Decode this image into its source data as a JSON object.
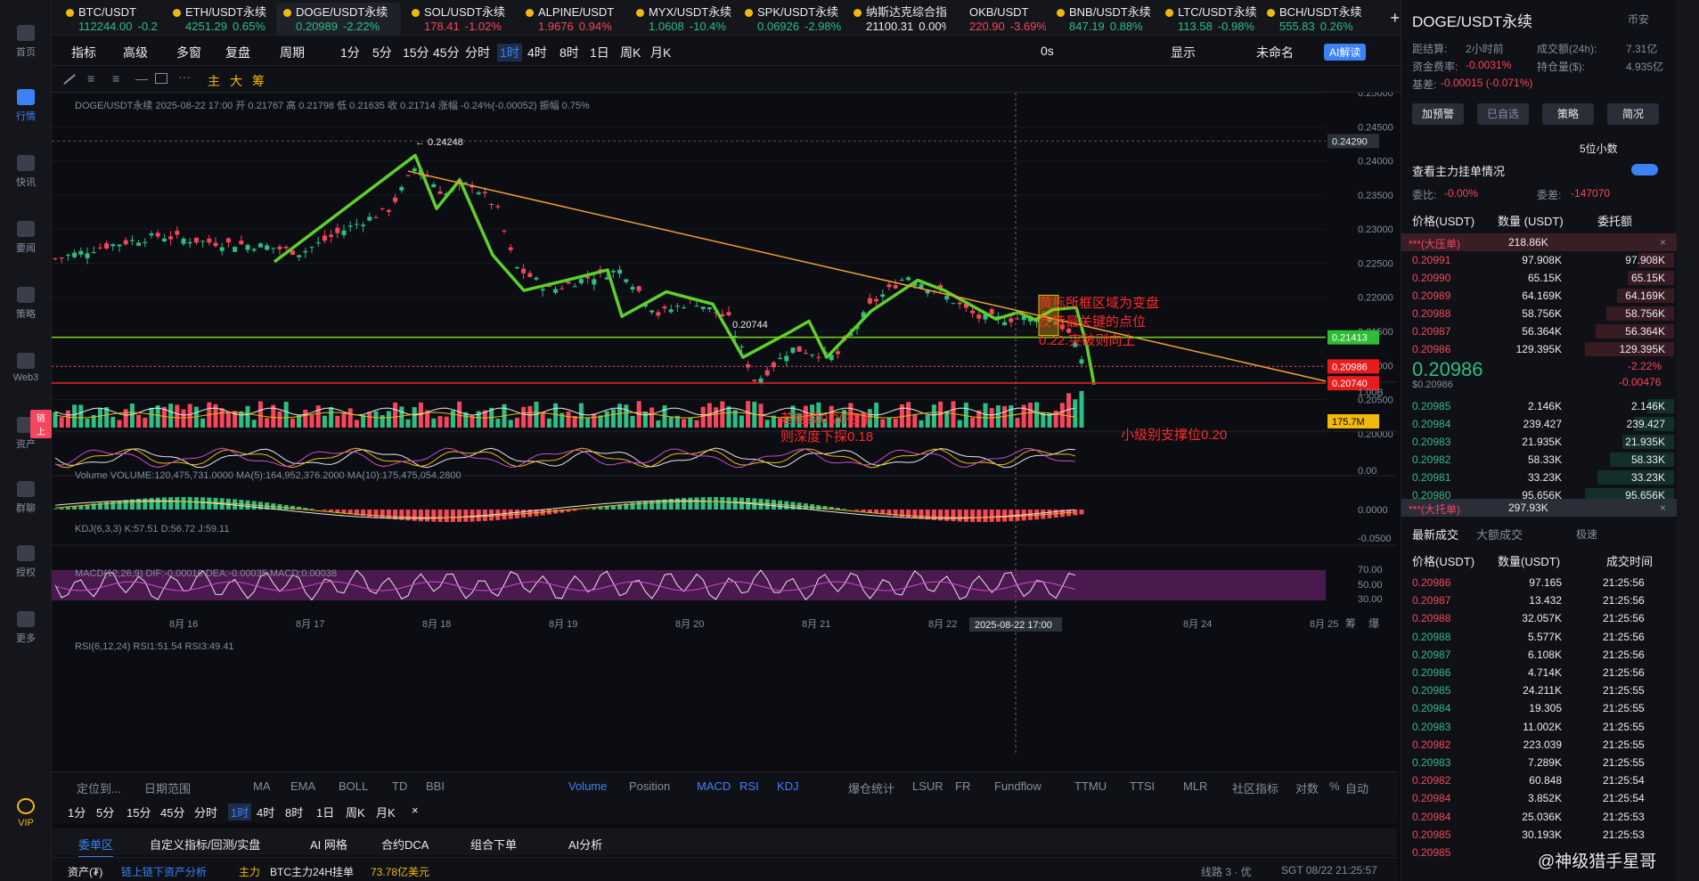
{
  "sidebar": [
    {
      "label": "首页"
    },
    {
      "label": "行情",
      "active": true
    },
    {
      "label": "快讯"
    },
    {
      "label": "要闻"
    },
    {
      "label": "策略"
    },
    {
      "label": "Web3"
    },
    {
      "label": "资产",
      "badge": "链上"
    },
    {
      "label": "群聊"
    },
    {
      "label": "授权"
    },
    {
      "label": "更多"
    },
    {
      "label": "VIP"
    }
  ],
  "tabs": [
    {
      "name": "BTC/USDT",
      "price": "112244.00",
      "chg": "-0.2",
      "dir": "up"
    },
    {
      "name": "ETH/USDT永续",
      "price": "4251.29",
      "chg": "0.65%",
      "dir": "up"
    },
    {
      "name": "DOGE/USDT永续",
      "price": "0.20989",
      "chg": "-2.22%",
      "dir": "up",
      "sel": true
    },
    {
      "name": "SOL/USDT永续",
      "price": "178.41",
      "chg": "-1.02%",
      "dir": "dn"
    },
    {
      "name": "ALPINE/USDT",
      "price": "1.9676",
      "chg": "0.94%",
      "dir": "dn"
    },
    {
      "name": "MYX/USDT永续",
      "price": "1.0608",
      "chg": "-10.4%",
      "dir": "up"
    },
    {
      "name": "SPK/USDT永续",
      "price": "0.06926",
      "chg": "-2.98%",
      "dir": "up"
    },
    {
      "name": "纳斯达克综合指数",
      "price": "21100.31",
      "chg": "0.00%",
      "dir": "wh"
    },
    {
      "name": "OKB/USDT",
      "price": "220.90",
      "chg": "-3.69%",
      "dir": "dn"
    },
    {
      "name": "BNB/USDT永续",
      "price": "847.19",
      "chg": "0.88%",
      "dir": "up"
    },
    {
      "name": "LTC/USDT永续",
      "price": "113.58",
      "chg": "-0.98%",
      "dir": "up"
    },
    {
      "name": "BCH/USDT永续",
      "price": "555.83",
      "chg": "0.26%",
      "dir": "up"
    }
  ],
  "add_tab": "+",
  "toolbar1": [
    "指标",
    "高级",
    "多窗",
    "复盘",
    "周期",
    "1分",
    "5分",
    "15分",
    "45分",
    "分时",
    "1时",
    "4时",
    "8时",
    "1日",
    "周K",
    "月K"
  ],
  "toolbar1_right": [
    "0s",
    "显示",
    "未命名",
    "AI解读"
  ],
  "toolbar2": [
    "主",
    "大",
    "筹"
  ],
  "chart": {
    "header": "DOGE/USDT永续  2025-08-22 17:00  开 0.21767  高 0.21798  低 0.21635  收 0.21714  涨幅 -0.24%(-0.00052)  振幅 0.75%",
    "price_axis": [
      "0.25000",
      "0.24500",
      "0.24000",
      "0.23500",
      "0.23000",
      "0.22500",
      "0.22000",
      "0.21500",
      "0.21000",
      "0.20500",
      "0.20000"
    ],
    "tag_top": "0.24290",
    "tag_green": "0.21413",
    "tag_cur": "0.20986",
    "tag_red": "0.20740",
    "high_lbl": "← 0.24248",
    "low_lbl": "0.20744",
    "anno1": "黄标所框区域为变盘反转最关键的点位0.22.突破则向上",
    "anno2": "若继续0.20往下.\n则深度下探0.18",
    "anno3": "小级别支撑位0.20",
    "volume_hdr": "Volume  VOLUME:120,475,731.0000  MA(5):164,952,376.2000  MA(10):175,475,054.2800",
    "vol_axis": "1.00B",
    "vol_tag": "175.7M",
    "kdj_hdr": "KDJ(6,3,3)  K:57.51  D:56.72  J:59.11",
    "kdj_axis": "0.00",
    "macd_hdr": "MACD(12,26,9)  DIF:-0.00016  DEA:-0.00035  MACD:0.00038",
    "macd_axis": [
      "0.0000",
      "-0.0500"
    ],
    "rsi_hdr": "RSI(6,12,24)  RSI1:51.54  RSI3:49.41",
    "rsi_axis": [
      "70.00",
      "50.00",
      "30.00"
    ],
    "dates": [
      "8月 16",
      "8月 17",
      "8月 18",
      "8月 19",
      "8月 20",
      "8月 21",
      "8月 22",
      "8月 24",
      "8月 25"
    ],
    "cross_date": "2025-08-22 17:00",
    "axis_right": [
      "筹",
      "爆"
    ]
  },
  "bottom_tabs": [
    "定位到...",
    "日期范围",
    "MA",
    "EMA",
    "BOLL",
    "TD",
    "BBI",
    "Volume",
    "Position",
    "MACD",
    "RSI",
    "KDJ",
    "爆仓统计",
    "LSUR",
    "FR",
    "Fundflow",
    "TTMU",
    "TTSI",
    "MLR",
    "社区指标",
    "对数",
    "%",
    "自动"
  ],
  "intervals": [
    "1分",
    "5分",
    "15分",
    "45分",
    "分时",
    "1时",
    "4时",
    "8时",
    "1日",
    "周K",
    "月K",
    "×"
  ],
  "panel_tabs": [
    "委单区",
    "自定义指标/回测/实盘",
    "AI 网格",
    "合约DCA",
    "组合下单",
    "AI分析"
  ],
  "status": {
    "assets": "资产(₮)",
    "analysis": "链上链下资产分析",
    "main": "主力",
    "btc": "BTC主力24H挂单",
    "btc_val": "73.78亿美元",
    "line": "线路 3 · 优",
    "time": "SGT 08/22 21:25:57"
  },
  "right": {
    "title": "DOGE/USDT永续",
    "exchange": "币安",
    "info": [
      [
        "距结算:",
        "2小时前",
        "成交额(24h):",
        "7.31亿"
      ],
      [
        "资金费率:",
        "-0.0031%",
        "持仓量($):",
        "4.935亿"
      ],
      [
        "基差:",
        "-0.00015 (-0.071%)",
        "",
        ""
      ]
    ],
    "buttons": [
      "加预警",
      "已自选",
      "策略",
      "简况"
    ],
    "decimal": "5位小数",
    "depth_title": "查看主力挂单情况",
    "ratio": [
      "委比:",
      "-0.00%",
      "委差:",
      "-147070"
    ],
    "ob_headers": [
      "价格(USDT)",
      "数量 (USDT)",
      "委托额"
    ],
    "big_ask": {
      "label": "***(大压单)",
      "val": "218.86K"
    },
    "asks": [
      [
        "0.20991",
        "97.908K",
        "97.908K"
      ],
      [
        "0.20990",
        "65.15K",
        "65.15K"
      ],
      [
        "0.20989",
        "64.169K",
        "64.169K"
      ],
      [
        "0.20988",
        "58.756K",
        "58.756K"
      ],
      [
        "0.20987",
        "56.364K",
        "56.364K"
      ],
      [
        "0.20986",
        "129.395K",
        "129.395K"
      ]
    ],
    "last_price": "0.20986",
    "last_usd": "$0.20986",
    "last_pct": "-2.22%",
    "last_chg": "-0.00476",
    "bids": [
      [
        "0.20985",
        "2.146K",
        "2.146K"
      ],
      [
        "0.20984",
        "239.427",
        "239.427"
      ],
      [
        "0.20983",
        "21.935K",
        "21.935K"
      ],
      [
        "0.20982",
        "58.33K",
        "58.33K"
      ],
      [
        "0.20981",
        "33.23K",
        "33.23K"
      ],
      [
        "0.20980",
        "95.656K",
        "95.656K"
      ]
    ],
    "big_bid": {
      "label": "***(大托单)",
      "val": "297.93K"
    },
    "trade_tabs": [
      "最新成交",
      "大额成交",
      "极速"
    ],
    "trade_headers": [
      "价格(USDT)",
      "数量(USDT)",
      "成交时间"
    ],
    "trades": [
      [
        "0.20986",
        "97.165",
        "21:25:56",
        "dn"
      ],
      [
        "0.20987",
        "13.432",
        "21:25:56",
        "dn"
      ],
      [
        "0.20988",
        "32.057K",
        "21:25:56",
        "dn"
      ],
      [
        "0.20988",
        "5.577K",
        "21:25:56",
        "up"
      ],
      [
        "0.20987",
        "6.108K",
        "21:25:56",
        "up"
      ],
      [
        "0.20986",
        "4.714K",
        "21:25:56",
        "up"
      ],
      [
        "0.20985",
        "24.211K",
        "21:25:55",
        "up"
      ],
      [
        "0.20984",
        "19.305",
        "21:25:55",
        "up"
      ],
      [
        "0.20983",
        "11.002K",
        "21:25:55",
        "up"
      ],
      [
        "0.20982",
        "223.039",
        "21:25:55",
        "dn"
      ],
      [
        "0.20983",
        "7.289K",
        "21:25:55",
        "up"
      ],
      [
        "0.20982",
        "60.848",
        "21:25:54",
        "dn"
      ],
      [
        "0.20984",
        "3.852K",
        "21:25:54",
        "dn"
      ],
      [
        "0.20984",
        "25.036K",
        "21:25:53",
        "dn"
      ],
      [
        "0.20985",
        "30.193K",
        "21:25:53",
        "dn"
      ],
      [
        "0.20985",
        "",
        "",
        "dn"
      ]
    ]
  },
  "watermark": "@神级猎手星哥"
}
